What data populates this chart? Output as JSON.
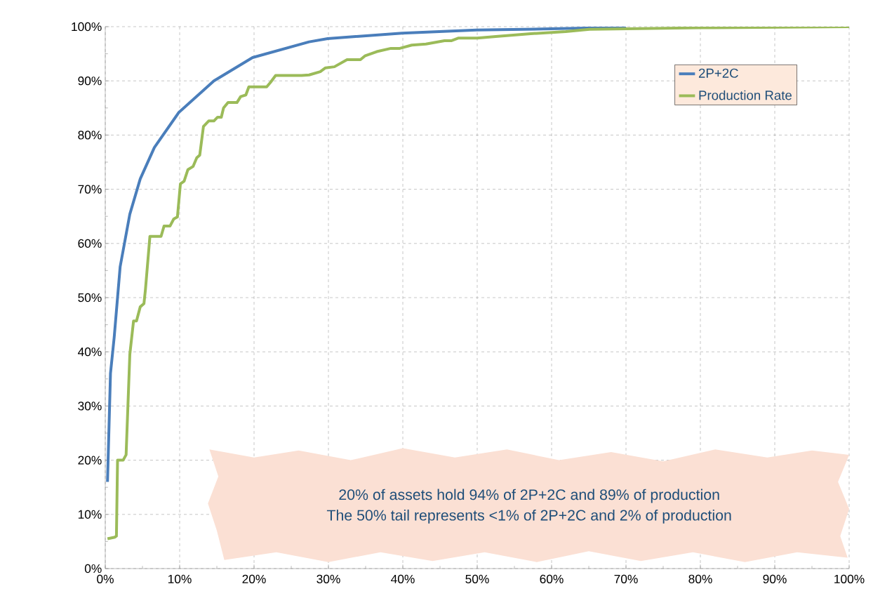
{
  "chart_data": {
    "type": "line",
    "xlim": [
      0,
      100
    ],
    "ylim": [
      0,
      100
    ],
    "xticks": [
      {
        "value": 0,
        "label": "0%"
      },
      {
        "value": 10,
        "label": "10%"
      },
      {
        "value": 20,
        "label": "20%"
      },
      {
        "value": 30,
        "label": "30%"
      },
      {
        "value": 40,
        "label": "40%"
      },
      {
        "value": 50,
        "label": "50%"
      },
      {
        "value": 60,
        "label": "60%"
      },
      {
        "value": 70,
        "label": "70%"
      },
      {
        "value": 80,
        "label": "80%"
      },
      {
        "value": 90,
        "label": "90%"
      },
      {
        "value": 100,
        "label": "100%"
      }
    ],
    "yticks": [
      {
        "value": 0,
        "label": "0%"
      },
      {
        "value": 10,
        "label": "10%"
      },
      {
        "value": 20,
        "label": "20%"
      },
      {
        "value": 30,
        "label": "30%"
      },
      {
        "value": 40,
        "label": "40%"
      },
      {
        "value": 50,
        "label": "50%"
      },
      {
        "value": 60,
        "label": "60%"
      },
      {
        "value": 70,
        "label": "70%"
      },
      {
        "value": 80,
        "label": "80%"
      },
      {
        "value": 90,
        "label": "90%"
      },
      {
        "value": 100,
        "label": "100%"
      }
    ],
    "grid": true,
    "legend": "top right",
    "marker": "none",
    "line_style": "solid",
    "series": [
      {
        "name": "2P+2C",
        "color": "#4a7ebb",
        "x": [
          0.3,
          0.7,
          1.2,
          2,
          3.3,
          4.7,
          6.6,
          9.9,
          14.6,
          19.8,
          27.4,
          29.9,
          39.9,
          49.9,
          59.9,
          70
        ],
        "values": [
          16,
          36,
          42.7,
          55.7,
          65.4,
          71.9,
          77.7,
          84.2,
          90,
          94.3,
          97.2,
          97.8,
          98.8,
          99.4,
          99.6,
          99.9
        ]
      },
      {
        "name": "Production Rate",
        "color": "#9bbb59",
        "x": [
          0.3,
          1.3,
          1.5,
          1.65,
          2.4,
          2.8,
          3.3,
          3.8,
          4.2,
          4.7,
          5.2,
          5.4,
          6.0,
          7.5,
          7.9,
          8.7,
          9.2,
          9.7,
          10.1,
          10.6,
          11.1,
          11.8,
          12.3,
          12.7,
          13.2,
          13.9,
          14.6,
          15.1,
          15.6,
          15.9,
          16.5,
          17.7,
          18.2,
          18.9,
          19.3,
          21.7,
          22.2,
          22.9,
          26.4,
          27.4,
          28.9,
          29.6,
          30.8,
          32.5,
          34.3,
          34.9,
          36.5,
          38.4,
          39.6,
          41.2,
          43.1,
          45.6,
          46.5,
          47.5,
          50,
          52.5,
          57.2,
          61.9,
          65.1,
          80,
          100
        ],
        "values": [
          5.5,
          5.8,
          6,
          20,
          20,
          21,
          39.5,
          45.7,
          45.7,
          48.3,
          48.9,
          51.5,
          61.3,
          61.3,
          63.2,
          63.2,
          64.5,
          64.9,
          71,
          71.5,
          73.6,
          74.2,
          75.8,
          76.3,
          81.6,
          82.6,
          82.6,
          83.3,
          83.3,
          85,
          86,
          86,
          87.1,
          87.4,
          88.9,
          88.9,
          89.7,
          91,
          91,
          91.1,
          91.7,
          92.4,
          92.6,
          93.9,
          93.9,
          94.6,
          95.4,
          96,
          96,
          96.6,
          96.8,
          97.4,
          97.4,
          97.9,
          97.9,
          98.2,
          98.7,
          99.1,
          99.5,
          99.8,
          100
        ]
      }
    ],
    "annotations": [
      "20% of assets hold  94% of 2P+2C and 89% of production",
      "The 50% tail represents <1% of 2P+2C and 2% of production"
    ]
  }
}
